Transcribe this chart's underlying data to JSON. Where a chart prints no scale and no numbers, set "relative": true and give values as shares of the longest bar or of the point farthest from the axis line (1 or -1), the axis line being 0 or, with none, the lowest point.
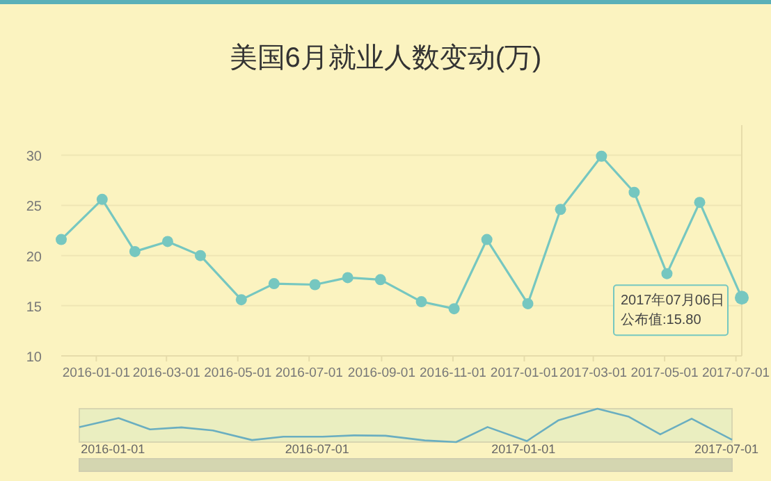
{
  "chart_data": [
    {
      "type": "line",
      "title": "美国6月就业人数变动(万)",
      "x": [
        "2015-12-02",
        "2016-01-06",
        "2016-02-03",
        "2016-03-02",
        "2016-03-30",
        "2016-05-04",
        "2016-06-01",
        "2016-07-06",
        "2016-08-03",
        "2016-08-31",
        "2016-10-05",
        "2016-11-02",
        "2016-11-30",
        "2017-01-04",
        "2017-02-01",
        "2017-03-08",
        "2017-04-05",
        "2017-05-03",
        "2017-05-31",
        "2017-07-06"
      ],
      "series": [
        {
          "color": "#76c7c0",
          "values": [
            21.6,
            25.6,
            20.4,
            21.4,
            20.0,
            15.6,
            17.2,
            17.1,
            17.8,
            17.6,
            15.4,
            14.7,
            21.6,
            15.2,
            24.6,
            29.9,
            26.3,
            18.2,
            25.3,
            15.8
          ]
        }
      ],
      "xlim": [
        "2015-12-02",
        "2017-07-06"
      ],
      "xticks": [
        {
          "value": "2016-01-01",
          "label": "2016-01-01"
        },
        {
          "value": "2016-03-01",
          "label": "2016-03-01"
        },
        {
          "value": "2016-05-01",
          "label": "2016-05-01"
        },
        {
          "value": "2016-07-01",
          "label": "2016-07-01"
        },
        {
          "value": "2016-09-01",
          "label": "2016-09-01"
        },
        {
          "value": "2016-11-01",
          "label": "2016-11-01"
        },
        {
          "value": "2017-01-01",
          "label": "2017-01-01"
        },
        {
          "value": "2017-03-01",
          "label": "2017-03-01"
        },
        {
          "value": "2017-05-01",
          "label": "2017-05-01"
        },
        {
          "value": "2017-07-01",
          "label": "2017-07-01"
        }
      ],
      "ylim": [
        10,
        33
      ],
      "yticks": [
        10,
        15,
        20,
        25,
        30
      ],
      "grid": "y",
      "marker": "circle",
      "annotations": [
        {
          "text": "2017年07月06日",
          "x": "2017-07-06",
          "y": 15.8
        },
        "公布值:15.80"
      ]
    },
    {
      "type": "line",
      "relative": true,
      "x": [
        "2015-12-02",
        "2016-01-06",
        "2016-02-03",
        "2016-03-02",
        "2016-03-30",
        "2016-05-04",
        "2016-06-01",
        "2016-07-06",
        "2016-08-03",
        "2016-08-31",
        "2016-10-05",
        "2016-11-02",
        "2016-11-30",
        "2017-01-04",
        "2017-02-01",
        "2017-03-08",
        "2017-04-05",
        "2017-05-03",
        "2017-05-31",
        "2017-07-06"
      ],
      "series": [
        {
          "color": "#6aaec0",
          "values": [
            0.45,
            0.72,
            0.38,
            0.44,
            0.35,
            0.06,
            0.16,
            0.16,
            0.2,
            0.19,
            0.05,
            0,
            0.45,
            0.03,
            0.65,
            1,
            0.76,
            0.23,
            0.7,
            0.07
          ]
        }
      ],
      "xlim": [
        "2015-12-02",
        "2017-07-06"
      ],
      "xticks": [
        {
          "value": "2016-01-01",
          "label": "2016-01-01"
        },
        {
          "value": "2016-07-01",
          "label": "2016-07-01"
        },
        {
          "value": "2017-01-01",
          "label": "2017-01-01"
        },
        {
          "value": "2017-07-01",
          "label": "2017-07-01"
        }
      ],
      "tick_labels": "x",
      "marker": "none",
      "grid": false
    }
  ]
}
